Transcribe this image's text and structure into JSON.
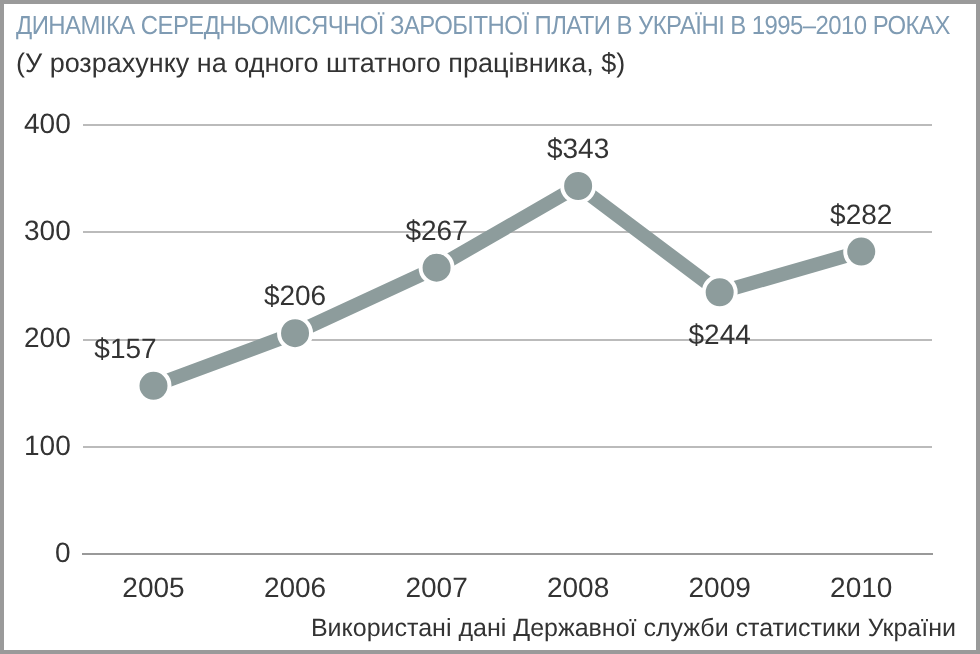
{
  "chart_data": {
    "type": "line",
    "title": "ДИНАМІКА СЕРЕДНЬОМІСЯЧНОЇ ЗАРОБІТНОЇ ПЛАТИ В УКРАЇНІ В 1995–2010 РОКАХ",
    "subtitle": "(У розрахунку на одного штатного працівника, $)",
    "categories": [
      "2005",
      "2006",
      "2007",
      "2008",
      "2009",
      "2010"
    ],
    "series": [
      {
        "color": "#8d9c9c",
        "values": [
          157,
          206,
          267,
          343,
          244,
          282
        ],
        "value_labels": [
          "$157",
          "$206",
          "$267",
          "$343",
          "$244",
          "$282"
        ]
      }
    ],
    "ylim": [
      0,
      400
    ],
    "yticks": [
      0,
      100,
      200,
      300,
      400
    ],
    "grid": "y",
    "marker": "circle",
    "line_style": "solid",
    "legend": false,
    "annotations": [
      "Використані дані Державної служби статистики України"
    ]
  }
}
